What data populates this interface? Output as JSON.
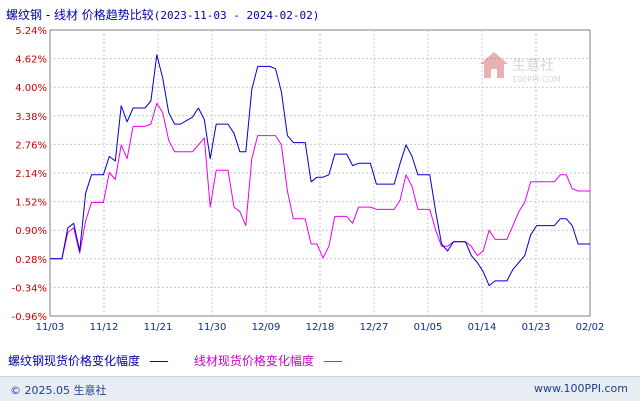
{
  "title": {
    "main": "螺纹钢 - 线材 价格趋势比较",
    "range": "(2023-11-03 - 2024-02-02)"
  },
  "watermark": {
    "brand": "生意社",
    "url": "100PPI.COM"
  },
  "legend": [
    {
      "label": "螺纹钢现货价格变化幅度",
      "color": "#0000cc"
    },
    {
      "label": "线材现货价格变化幅度",
      "color": "#ee00ee"
    }
  ],
  "footer": {
    "copyright": "© 2025.05 生意社",
    "site": "www.100PPI.com"
  },
  "chart_data": {
    "type": "line",
    "x_ticks": [
      "11/03",
      "11/12",
      "11/21",
      "11/30",
      "12/09",
      "12/18",
      "12/27",
      "01/05",
      "01/14",
      "01/23",
      "02/02"
    ],
    "y_ticks": [
      "5.24%",
      "4.62%",
      "4.00%",
      "3.38%",
      "2.76%",
      "2.14%",
      "1.52%",
      "0.90%",
      "0.28%",
      "-0.34%",
      "-0.96%"
    ],
    "ylim": [
      -0.96,
      5.24
    ],
    "xlim": [
      0,
      91
    ],
    "grid": true,
    "legend_position": "bottom",
    "series": [
      {
        "name": "螺纹钢现货价格变化幅度",
        "color": "#0000cc",
        "x": [
          0,
          2,
          3,
          4,
          5,
          6,
          7,
          9,
          10,
          11,
          12,
          13,
          14,
          15,
          16,
          17,
          18,
          19,
          20,
          21,
          22,
          24,
          25,
          26,
          27,
          28,
          29,
          30,
          31,
          32,
          33,
          34,
          35,
          36,
          37,
          38,
          39,
          40,
          41,
          42,
          43,
          44,
          45,
          46,
          47,
          48,
          49,
          50,
          51,
          52,
          53,
          54,
          55,
          56,
          57,
          58,
          59,
          60,
          61,
          62,
          63,
          64,
          65,
          66,
          67,
          68,
          69,
          70,
          71,
          72,
          73,
          74,
          75,
          76,
          77,
          78,
          79,
          80,
          81,
          82,
          83,
          84,
          85,
          86,
          87,
          88,
          89,
          90,
          91
        ],
        "y": [
          0.28,
          0.28,
          0.95,
          1.05,
          0.45,
          1.7,
          2.1,
          2.1,
          2.5,
          2.4,
          3.6,
          3.25,
          3.55,
          3.55,
          3.55,
          3.7,
          4.7,
          4.2,
          3.45,
          3.2,
          3.2,
          3.35,
          3.55,
          3.3,
          2.45,
          3.2,
          3.2,
          3.2,
          3.0,
          2.6,
          2.6,
          3.95,
          4.45,
          4.45,
          4.45,
          4.4,
          3.9,
          2.95,
          2.8,
          2.8,
          2.8,
          1.95,
          2.05,
          2.05,
          2.1,
          2.55,
          2.55,
          2.55,
          2.3,
          2.35,
          2.35,
          2.35,
          1.9,
          1.9,
          1.9,
          1.9,
          2.35,
          2.75,
          2.5,
          2.1,
          2.1,
          2.1,
          1.3,
          0.6,
          0.45,
          0.65,
          0.65,
          0.65,
          0.35,
          0.2,
          0.0,
          -0.3,
          -0.2,
          -0.2,
          -0.2,
          0.05,
          0.2,
          0.35,
          0.8,
          1.0,
          1.0,
          1.0,
          1.0,
          1.15,
          1.15,
          1.0,
          0.6,
          0.6,
          0.6
        ]
      },
      {
        "name": "线材现货价格变化幅度",
        "color": "#ee00ee",
        "x": [
          0,
          2,
          3,
          4,
          5,
          6,
          7,
          9,
          10,
          11,
          12,
          13,
          14,
          15,
          16,
          17,
          18,
          19,
          20,
          21,
          22,
          24,
          25,
          26,
          27,
          28,
          29,
          30,
          31,
          32,
          33,
          34,
          35,
          36,
          37,
          38,
          39,
          40,
          41,
          42,
          43,
          44,
          45,
          46,
          47,
          48,
          49,
          50,
          51,
          52,
          53,
          54,
          55,
          56,
          57,
          58,
          59,
          60,
          61,
          62,
          63,
          64,
          65,
          66,
          67,
          68,
          69,
          70,
          71,
          72,
          73,
          74,
          75,
          76,
          77,
          78,
          79,
          80,
          81,
          82,
          83,
          84,
          85,
          86,
          87,
          88,
          89,
          90,
          91
        ],
        "y": [
          0.28,
          0.28,
          0.85,
          0.95,
          0.4,
          1.1,
          1.5,
          1.5,
          2.15,
          2.0,
          2.75,
          2.45,
          3.15,
          3.15,
          3.15,
          3.2,
          3.65,
          3.45,
          2.85,
          2.6,
          2.6,
          2.6,
          2.75,
          2.9,
          1.4,
          2.2,
          2.2,
          2.2,
          1.4,
          1.3,
          1.0,
          2.45,
          2.95,
          2.95,
          2.95,
          2.95,
          2.75,
          1.75,
          1.15,
          1.15,
          1.15,
          0.6,
          0.6,
          0.3,
          0.55,
          1.2,
          1.2,
          1.2,
          1.05,
          1.4,
          1.4,
          1.4,
          1.35,
          1.35,
          1.35,
          1.35,
          1.55,
          2.1,
          1.85,
          1.35,
          1.35,
          1.35,
          0.9,
          0.55,
          0.55,
          0.65,
          0.65,
          0.65,
          0.55,
          0.35,
          0.45,
          0.9,
          0.7,
          0.7,
          0.7,
          1.0,
          1.3,
          1.5,
          1.95,
          1.95,
          1.95,
          1.95,
          1.95,
          2.1,
          2.1,
          1.8,
          1.75,
          1.75,
          1.75
        ]
      }
    ]
  }
}
